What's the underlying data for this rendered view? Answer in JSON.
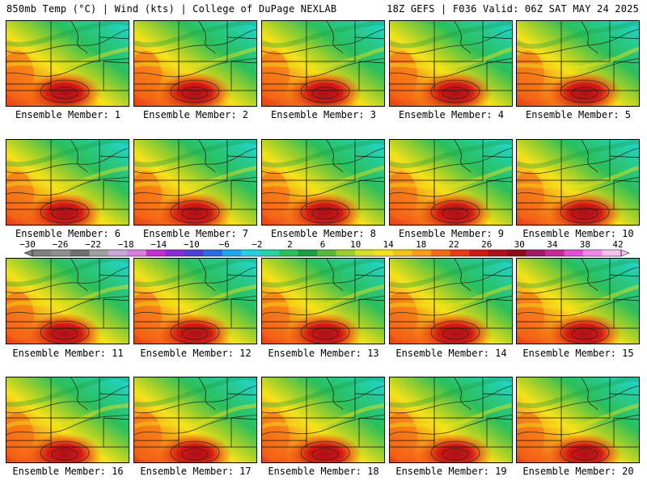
{
  "header": {
    "left": "850mb Temp (°C) | Wind (kts) | College of DuPage NEXLAB",
    "right": "18Z GEFS | F036 Valid: 06Z SAT MAY 24 2025"
  },
  "members": [
    "Ensemble Member: 1",
    "Ensemble Member: 2",
    "Ensemble Member: 3",
    "Ensemble Member: 4",
    "Ensemble Member: 5",
    "Ensemble Member: 6",
    "Ensemble Member: 7",
    "Ensemble Member: 8",
    "Ensemble Member: 9",
    "Ensemble Member: 10",
    "Ensemble Member: 11",
    "Ensemble Member: 12",
    "Ensemble Member: 13",
    "Ensemble Member: 14",
    "Ensemble Member: 15",
    "Ensemble Member: 16",
    "Ensemble Member: 17",
    "Ensemble Member: 18",
    "Ensemble Member: 19",
    "Ensemble Member: 20"
  ],
  "colorbar": {
    "ticks": [
      "−30",
      "−26",
      "−22",
      "−18",
      "−14",
      "−10",
      "−6",
      "−2",
      "2",
      "6",
      "10",
      "14",
      "18",
      "22",
      "26",
      "30",
      "34",
      "38",
      "42"
    ],
    "colors": [
      "#7f7f7f",
      "#8f8f8f",
      "#6f6f6f",
      "#a0a0a0",
      "#c7a6d9",
      "#d97be0",
      "#c22fd1",
      "#8a2bd6",
      "#4b3fd9",
      "#2f6be0",
      "#1da7e8",
      "#23d1e3",
      "#27d3a4",
      "#2bbf5c",
      "#1e9e3e",
      "#58b83a",
      "#9ccf2c",
      "#d6e02a",
      "#f5e21a",
      "#f5c21a",
      "#f79d18",
      "#f56a17",
      "#e83b14",
      "#d21a14",
      "#b0101a",
      "#8e0c18",
      "#a01868",
      "#c22a9a",
      "#e050d0",
      "#f08ae8",
      "#f8c0f0"
    ]
  },
  "colors": {
    "cold_teal": "#20d6dd",
    "cool_green": "#2bbf5c",
    "warm_yellow": "#f5e21a",
    "hot_red": "#d21a14"
  }
}
